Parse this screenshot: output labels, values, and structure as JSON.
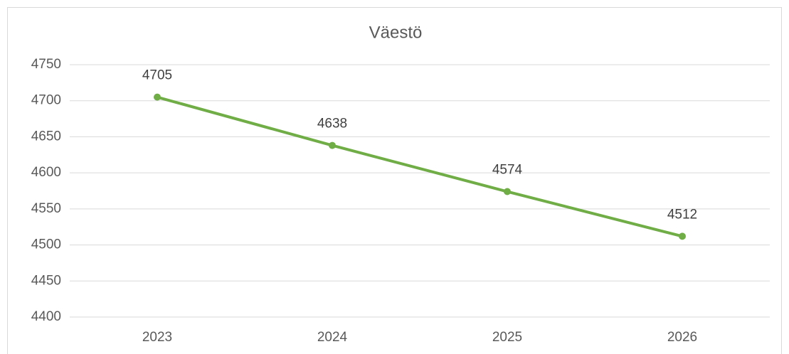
{
  "chart_data": {
    "type": "line",
    "title": "Väestö",
    "categories": [
      "2023",
      "2024",
      "2025",
      "2026"
    ],
    "values": [
      4705,
      4638,
      4574,
      4512
    ],
    "color": "#70ad47",
    "ylim": [
      4400,
      4750
    ],
    "yticks": [
      4400,
      4450,
      4500,
      4550,
      4600,
      4650,
      4700,
      4750
    ],
    "grid": true
  }
}
